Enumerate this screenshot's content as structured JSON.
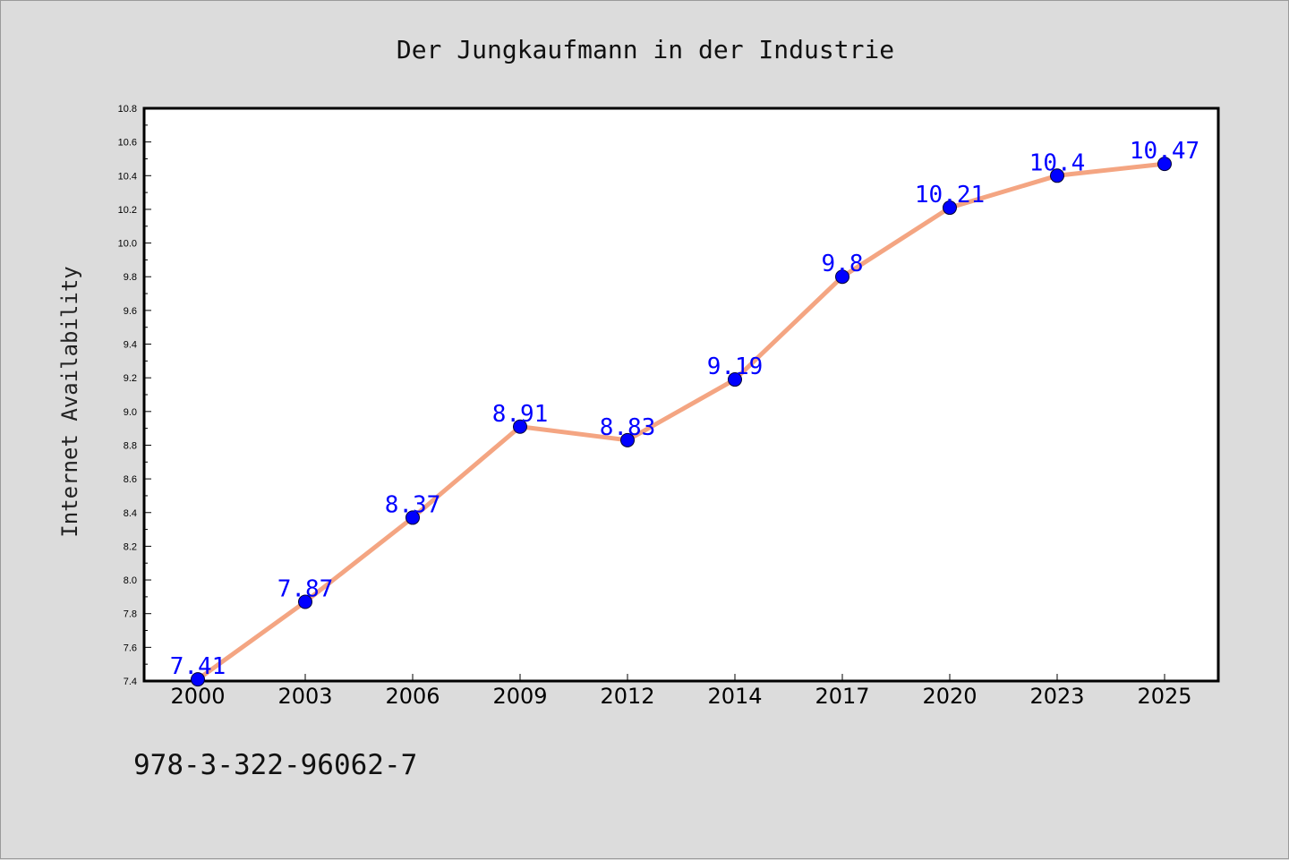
{
  "chart_data": {
    "type": "line",
    "title": "Der Jungkaufmann in der Industrie",
    "xlabel": "",
    "ylabel": "Internet Availability",
    "categories": [
      "2000",
      "2003",
      "2006",
      "2009",
      "2012",
      "2014",
      "2017",
      "2020",
      "2023",
      "2025"
    ],
    "series": [
      {
        "values": [
          7.41,
          7.87,
          8.37,
          8.91,
          8.83,
          9.19,
          9.8,
          10.21,
          10.4,
          10.47
        ],
        "labels": [
          "7.41",
          "7.87",
          "8.37",
          "8.91",
          "8.83",
          "9.19",
          "9.8",
          "10.21",
          "10.4",
          "10.47"
        ]
      }
    ],
    "ylim": [
      7.4,
      10.8
    ],
    "yticks": [
      "7.4",
      "7.6",
      "7.8",
      "8.0",
      "8.2",
      "8.4",
      "8.6",
      "8.8",
      "9.0",
      "9.2",
      "9.4",
      "9.6",
      "9.8",
      "10.0",
      "10.2",
      "10.4",
      "10.6",
      "10.8"
    ],
    "grid": false,
    "colors": {
      "line": "#f4a582",
      "marker": "#0000ff",
      "label": "#0000ff",
      "background": "#dcdcdc",
      "plot_background": "#ffffff"
    }
  },
  "footer": {
    "isbn": "978-3-322-96062-7"
  }
}
